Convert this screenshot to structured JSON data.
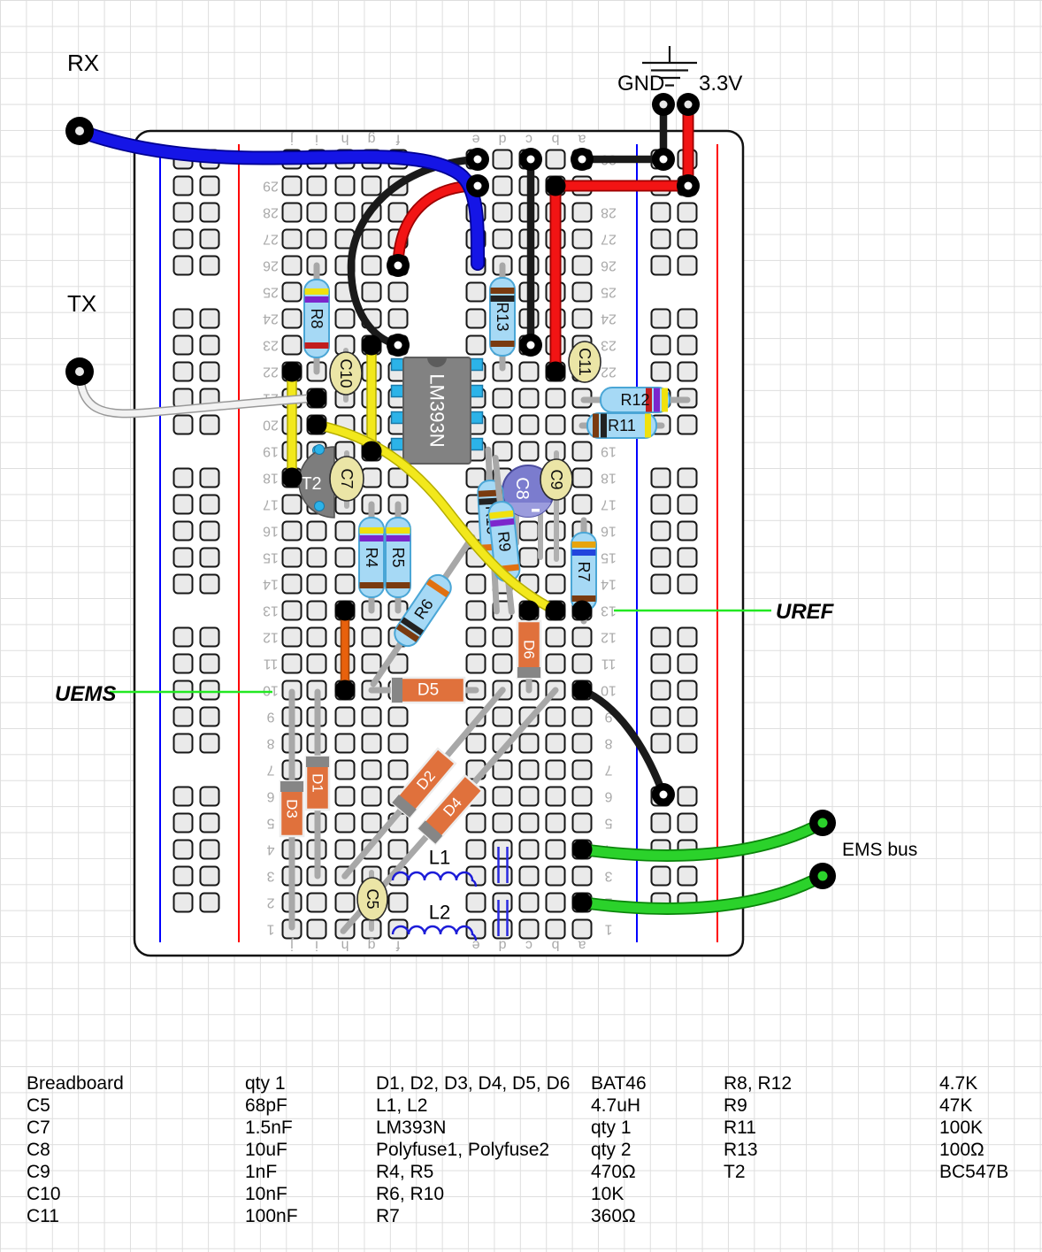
{
  "labels": {
    "rx": "RX",
    "tx": "TX",
    "gnd": "GND",
    "v33": "3.3V",
    "ems_bus": "EMS bus",
    "uref": "UREF",
    "uems": "UEMS"
  },
  "components": {
    "ic": "LM393N",
    "t2": "T2",
    "c5": "C5",
    "c7": "C7",
    "c8": "C8",
    "c9": "C9",
    "c10": "C10",
    "c11": "C11",
    "r4": "R4",
    "r5": "R5",
    "r6": "R6",
    "r7": "R7",
    "r8": "R8",
    "r9": "R9",
    "r10": "R10",
    "r11": "R11",
    "r12": "R12",
    "r13": "R13",
    "d1": "D1",
    "d2": "D2",
    "d3": "D3",
    "d4": "D4",
    "d5": "D5",
    "d6": "D6",
    "l1": "L1",
    "l2": "L2"
  },
  "board": {
    "row_count": 30,
    "column_letters": [
      "j",
      "i",
      "h",
      "g",
      "f",
      "e",
      "d",
      "c",
      "b",
      "a"
    ]
  },
  "parts_list": {
    "rows": [
      [
        "Breadboard",
        "qty 1",
        "D1, D2, D3, D4, D5, D6",
        "BAT46",
        "R8, R12",
        "4.7K"
      ],
      [
        "C5",
        "68pF",
        "L1, L2",
        "4.7uH",
        "R9",
        "47K"
      ],
      [
        "C7",
        "1.5nF",
        "LM393N",
        "qty 1",
        "R11",
        "100K"
      ],
      [
        "C8",
        "10uF",
        "Polyfuse1, Polyfuse2",
        "qty 2",
        "R13",
        "100Ω"
      ],
      [
        "C9",
        "1nF",
        "R4, R5",
        "470Ω",
        "T2",
        "BC547B"
      ],
      [
        "C10",
        "10nF",
        "R6, R10",
        "10K",
        "",
        ""
      ],
      [
        "C11",
        "100nF",
        "R7",
        "360Ω",
        "",
        ""
      ]
    ]
  },
  "colors": {
    "wire_blue": "#1515e6",
    "wire_red": "#f21414",
    "wire_black": "#1a1a1a",
    "wire_yellow": "#f2e81c",
    "wire_green": "#2bd22b",
    "wire_white": "#f2f2f2",
    "wire_orange": "#e8610c",
    "resistor_body": "#a6d9f5",
    "diode_body": "#e0713c",
    "cap_disc": "#ebe5a6",
    "cap_electrolytic": "#7b7cce",
    "ic_body": "#828282",
    "ic_pin": "#2cb3e8",
    "rail_red": "#ff0000",
    "rail_blue": "#0000ff",
    "annotation_green": "#22e822"
  }
}
